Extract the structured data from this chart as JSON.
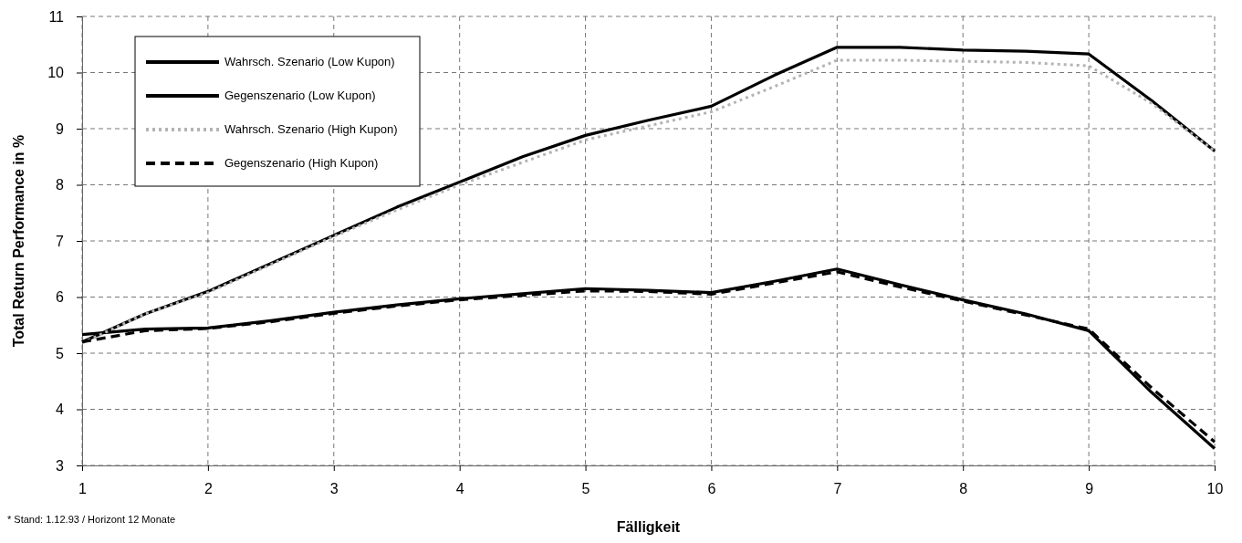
{
  "chart_data": {
    "type": "line",
    "xlabel": "Fälligkeit",
    "ylabel": "Total Return Performance in %",
    "x": [
      1,
      1.5,
      2,
      2.5,
      3,
      3.5,
      4,
      4.5,
      5,
      5.5,
      6,
      6.5,
      7,
      7.5,
      8,
      8.5,
      9,
      9.5,
      10
    ],
    "series": [
      {
        "name": "Wahrsch. Szenario (Low Kupon)",
        "color": "#000000",
        "line_style": "solid",
        "values": [
          5.2,
          5.7,
          6.1,
          6.6,
          7.1,
          7.6,
          8.05,
          8.5,
          8.88,
          9.15,
          9.4,
          9.95,
          10.45,
          10.45,
          10.4,
          10.38,
          10.33,
          9.5,
          8.6
        ]
      },
      {
        "name": "Gegenszenario (Low Kupon)",
        "color": "#000000",
        "line_style": "solid",
        "values": [
          5.33,
          5.43,
          5.45,
          5.58,
          5.73,
          5.86,
          5.97,
          6.06,
          6.15,
          6.12,
          6.08,
          6.28,
          6.5,
          6.22,
          5.95,
          5.7,
          5.4,
          4.3,
          3.3
        ]
      },
      {
        "name": "Wahrsch. Szenario (High Kupon)",
        "color": "#b4b4b4",
        "line_style": "dotted",
        "values": [
          5.18,
          5.7,
          6.08,
          6.58,
          7.08,
          7.55,
          8.0,
          8.4,
          8.8,
          9.05,
          9.3,
          9.75,
          10.22,
          10.22,
          10.2,
          10.18,
          10.12,
          9.45,
          8.6
        ]
      },
      {
        "name": "Gegenszenario (High Kupon)",
        "color": "#000000",
        "line_style": "dashed",
        "values": [
          5.2,
          5.4,
          5.44,
          5.56,
          5.71,
          5.84,
          5.95,
          6.03,
          6.11,
          6.1,
          6.05,
          6.25,
          6.45,
          6.18,
          5.93,
          5.68,
          5.43,
          4.38,
          3.42
        ]
      }
    ],
    "xlim": [
      1,
      10
    ],
    "xticks": [
      1,
      2,
      3,
      4,
      5,
      6,
      7,
      8,
      9,
      10
    ],
    "ylim": [
      3,
      11
    ],
    "yticks": [
      3,
      4,
      5,
      6,
      7,
      8,
      9,
      10,
      11
    ],
    "grid": true,
    "legend": "top left",
    "marker": "none",
    "annotations": [
      "* Stand: 1.12.93 / Horizont 12 Monate"
    ]
  }
}
